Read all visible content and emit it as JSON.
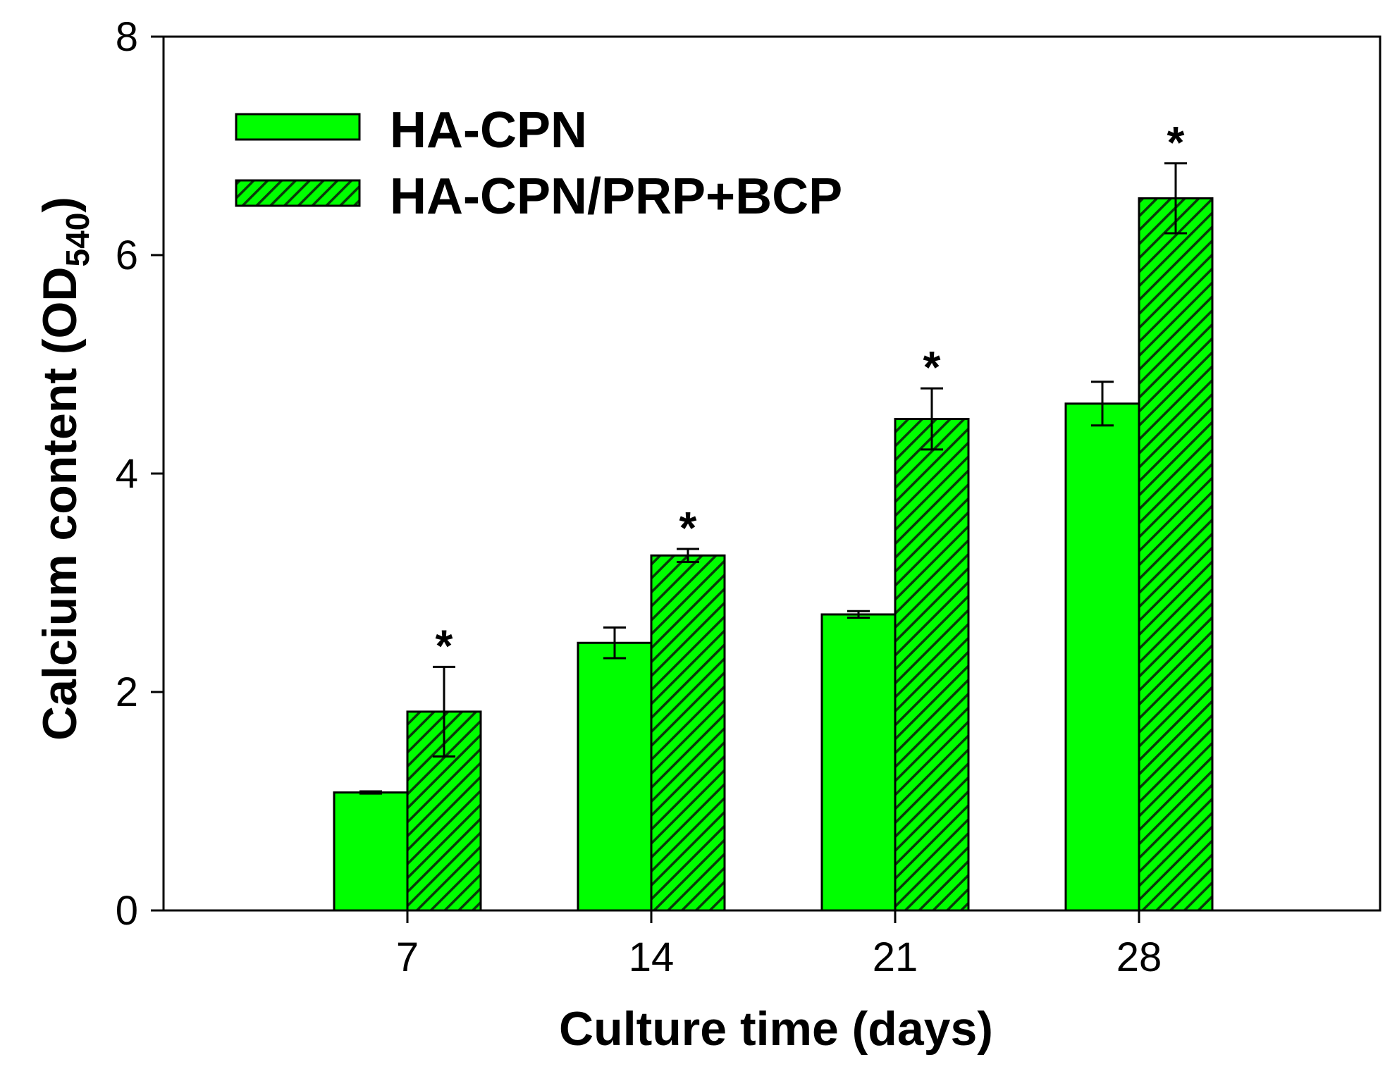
{
  "chart_data": {
    "type": "bar",
    "xlabel": "Culture time (days)",
    "ylabel_main": "Calcium content (OD",
    "ylabel_sub": "540",
    "ylabel_close": ")",
    "ylim": [
      0,
      8
    ],
    "yticks": [
      0,
      2,
      4,
      6,
      8
    ],
    "categories": [
      "7",
      "14",
      "21",
      "28"
    ],
    "legend_position": "top-left",
    "series": [
      {
        "name": "HA-CPN",
        "color": "#00ff00",
        "pattern": "solid",
        "values": [
          1.08,
          2.45,
          2.71,
          4.64
        ],
        "errors": [
          0.01,
          0.14,
          0.03,
          0.2
        ],
        "significance": [
          "",
          "",
          "",
          ""
        ]
      },
      {
        "name": "HA-CPN/PRP+BCP",
        "color": "#00ff00",
        "pattern": "hatched",
        "values": [
          1.82,
          3.25,
          4.5,
          6.52
        ],
        "errors": [
          0.41,
          0.06,
          0.28,
          0.32
        ],
        "significance": [
          "*",
          "*",
          "*",
          "*"
        ]
      }
    ]
  }
}
